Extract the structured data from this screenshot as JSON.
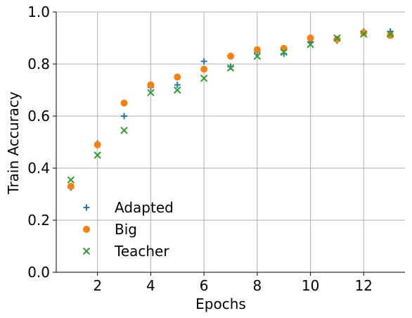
{
  "chart_data": {
    "type": "scatter",
    "title": "",
    "xlabel": "Epochs",
    "ylabel": "Train Accuracy",
    "xlim": [
      0.45,
      13.55
    ],
    "ylim": [
      0,
      1
    ],
    "xticks": [
      2,
      4,
      6,
      8,
      10,
      12
    ],
    "yticks": [
      0.0,
      0.2,
      0.4,
      0.6,
      0.8,
      1.0
    ],
    "xtick_labels": [
      "2",
      "4",
      "6",
      "8",
      "10",
      "12"
    ],
    "ytick_labels": [
      "0.0",
      "0.2",
      "0.4",
      "0.6",
      "0.8",
      "1.0"
    ],
    "grid": true,
    "legend_position": "lower-left",
    "x": [
      1,
      2,
      3,
      4,
      5,
      6,
      7,
      8,
      9,
      10,
      11,
      12,
      13
    ],
    "series": [
      {
        "name": "Adapted",
        "marker": "plus",
        "color": "#1f77b4",
        "values": [
          0.325,
          0.495,
          0.6,
          0.71,
          0.72,
          0.81,
          0.79,
          0.845,
          0.84,
          0.885,
          0.89,
          0.925,
          0.925
        ]
      },
      {
        "name": "Big",
        "marker": "circle",
        "color": "#ff7f0e",
        "values": [
          0.33,
          0.49,
          0.65,
          0.72,
          0.75,
          0.78,
          0.83,
          0.855,
          0.86,
          0.9,
          0.895,
          0.92,
          0.91
        ]
      },
      {
        "name": "Teacher",
        "marker": "x",
        "color": "#2ca02c",
        "values": [
          0.355,
          0.45,
          0.545,
          0.69,
          0.7,
          0.745,
          0.785,
          0.83,
          0.845,
          0.875,
          0.9,
          0.915,
          0.915
        ]
      }
    ]
  }
}
